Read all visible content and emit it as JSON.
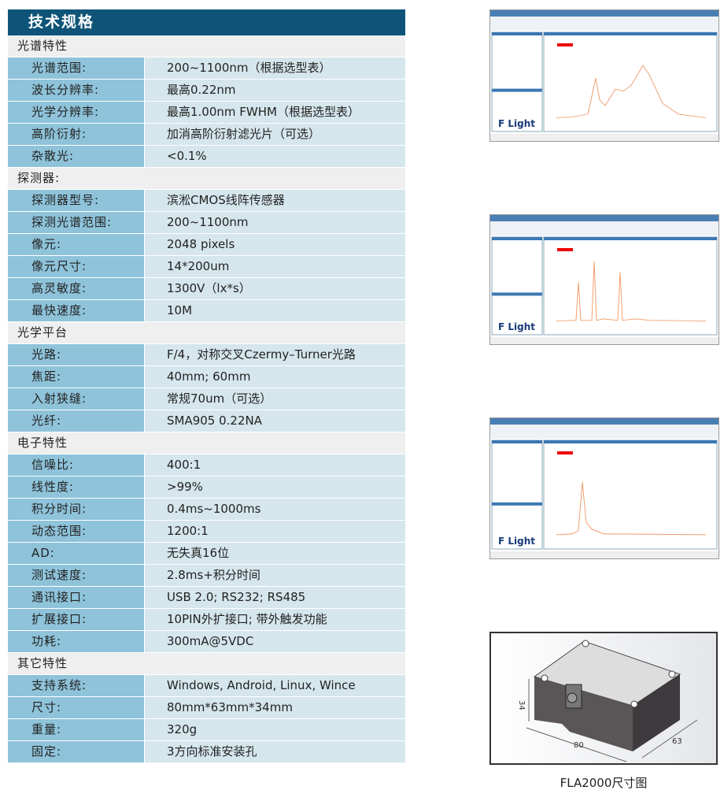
{
  "title": "技术规格",
  "sections": [
    {
      "name": "光谱特性",
      "rows": [
        [
          "光谱范围:",
          "200~1100nm（根据选型表）"
        ],
        [
          "波长分辨率:",
          "最高0.22nm"
        ],
        [
          "光学分辨率:",
          "最高1.00nm FWHM（根据选型表）"
        ],
        [
          "高阶衍射:",
          "加消高阶衍射滤光片（可选）"
        ],
        [
          "杂散光:",
          "<0.1%"
        ]
      ]
    },
    {
      "name": "探测器:",
      "rows": [
        [
          "探测器型号:",
          "滨淞CMOS线阵传感器"
        ],
        [
          "探测光谱范围:",
          "200~1100nm"
        ],
        [
          "像元:",
          "2048 pixels"
        ],
        [
          "像元尺寸:",
          "14*200um"
        ],
        [
          "高灵敏度:",
          "1300V（lx*s）"
        ],
        [
          "最快速度:",
          "10M"
        ]
      ]
    },
    {
      "name": "光学平台",
      "rows": [
        [
          "光路:",
          "F/4，对称交叉Czermy–Turner光路"
        ],
        [
          "焦距:",
          "40mm; 60mm"
        ],
        [
          "入射狭缝:",
          "常规70um（可选）"
        ],
        [
          "光纤:",
          "SMA905  0.22NA"
        ]
      ]
    },
    {
      "name": "电子特性",
      "rows": [
        [
          "信噪比:",
          "400:1"
        ],
        [
          "线性度:",
          ">99%"
        ],
        [
          "积分时间:",
          "0.4ms~1000ms"
        ],
        [
          "动态范围:",
          "1200:1"
        ],
        [
          "AD:",
          "无失真16位"
        ],
        [
          "测试速度:",
          "2.8ms+积分时间"
        ],
        [
          "通讯接口:",
          "USB 2.0; RS232; RS485"
        ],
        [
          "扩展接口:",
          "10PIN外扩接口; 带外触发功能"
        ],
        [
          "功耗:",
          "300mA@5VDC"
        ]
      ]
    },
    {
      "name": "其它特性",
      "rows": [
        [
          "支持系统:",
          "Windows, Android, Linux, Wince"
        ],
        [
          "尺寸:",
          "80mm*63mm*34mm"
        ],
        [
          "重量:",
          "320g"
        ],
        [
          "固定:",
          "3方向标准安装孔"
        ]
      ]
    }
  ],
  "screenshots": [
    {
      "logo": "F Light"
    },
    {
      "logo": "F Light"
    },
    {
      "logo": "F Light"
    }
  ],
  "product": {
    "dims": [
      "34",
      "80",
      "63"
    ],
    "caption": "FLA2000尺寸图"
  },
  "colors": {
    "header": "#0e5478",
    "label_cell": "#8ec3da",
    "value_cell": "#d5e6ec",
    "section": "#efefef",
    "spectrum": "#f0a070"
  }
}
